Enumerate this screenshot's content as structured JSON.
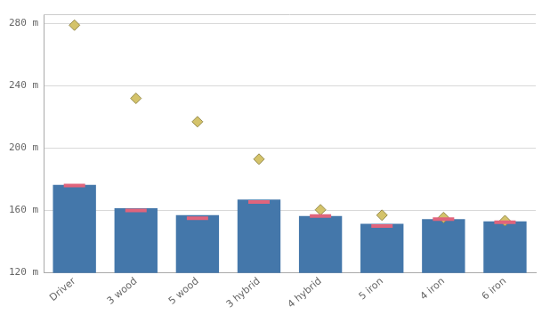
{
  "chart_data": {
    "type": "bar",
    "categories": [
      "Driver",
      "3 wood",
      "5 wood",
      "3 hybrid",
      "4 hybrid",
      "5 iron",
      "4 iron",
      "6 iron"
    ],
    "series": [
      {
        "type": "bar",
        "color": "#4477aa",
        "values": [
          176.5,
          161.5,
          157,
          167,
          156.5,
          151.5,
          154.5,
          153
        ]
      },
      {
        "type": "scatter",
        "marker": "line",
        "color": "#e0647c",
        "values": [
          176,
          160,
          155,
          165.5,
          156.5,
          150,
          154.5,
          152.5
        ]
      },
      {
        "type": "scatter",
        "marker": "diamond",
        "color": "#d4c36a",
        "values": [
          279,
          232,
          217,
          193,
          160.5,
          157,
          155.5,
          153.5
        ]
      }
    ],
    "ylim": [
      120,
      286
    ],
    "yticks": [
      {
        "value": 120,
        "label": "120 m"
      },
      {
        "value": 160,
        "label": "160 m"
      },
      {
        "value": 200,
        "label": "200 m"
      },
      {
        "value": 240,
        "label": "240 m"
      },
      {
        "value": 280,
        "label": "280 m"
      }
    ],
    "grid": true
  }
}
